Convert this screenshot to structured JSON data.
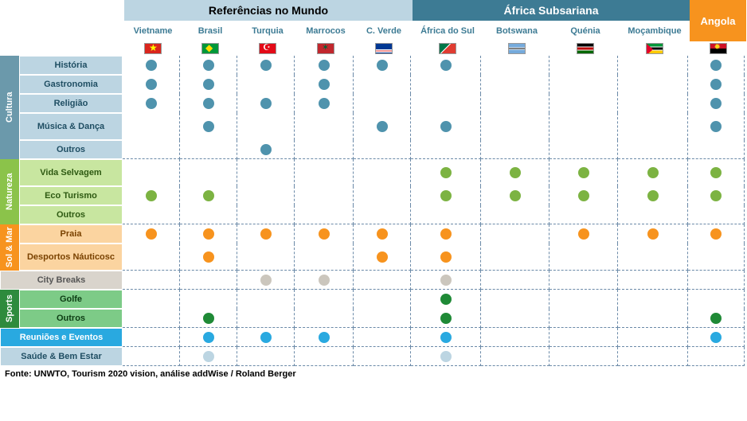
{
  "header": {
    "group1": "Referências no Mundo",
    "group2": "África Subsariana",
    "angola": "Angola"
  },
  "countries": [
    {
      "key": "vn",
      "label": "Vietname",
      "flag": "f-vn",
      "col": "c1"
    },
    {
      "key": "br",
      "label": "Brasil",
      "flag": "f-br",
      "col": "c2"
    },
    {
      "key": "tr",
      "label": "Turquia",
      "flag": "f-tr",
      "col": "c3"
    },
    {
      "key": "ma",
      "label": "Marrocos",
      "flag": "f-ma",
      "col": "c4"
    },
    {
      "key": "cv",
      "label": "C. Verde",
      "flag": "f-cv",
      "col": "c5"
    },
    {
      "key": "za",
      "label": "África do Sul",
      "flag": "f-za",
      "col": "c6"
    },
    {
      "key": "bw",
      "label": "Botswana",
      "flag": "f-bw",
      "col": "c7"
    },
    {
      "key": "ke",
      "label": "Quénia",
      "flag": "f-ke",
      "col": "c8"
    },
    {
      "key": "mz",
      "label": "Moçambique",
      "flag": "f-mz",
      "col": "c9"
    },
    {
      "key": "ao",
      "label": "",
      "flag": "f-ao",
      "col": "c10"
    }
  ],
  "categories": [
    {
      "key": "cultura",
      "label": "Cultura",
      "bg": "#6b99ab",
      "text": "#fff",
      "row_bg": "#bcd5e2",
      "row_text": "#1f4e63",
      "dot": "#4f93ad",
      "rows": [
        {
          "label": "História",
          "cells": [
            1,
            1,
            1,
            1,
            1,
            1,
            0,
            0,
            0,
            1
          ]
        },
        {
          "label": "Gastronomia",
          "cells": [
            1,
            1,
            0,
            1,
            0,
            0,
            0,
            0,
            0,
            1
          ]
        },
        {
          "label": "Religião",
          "cells": [
            1,
            1,
            1,
            1,
            0,
            0,
            0,
            0,
            0,
            1
          ]
        },
        {
          "label": "Música & Dança",
          "tall": true,
          "cells": [
            0,
            1,
            0,
            0,
            1,
            1,
            0,
            0,
            0,
            1
          ]
        },
        {
          "label": "Outros",
          "cells": [
            0,
            0,
            1,
            0,
            0,
            0,
            0,
            0,
            0,
            0
          ]
        }
      ]
    },
    {
      "key": "natureza",
      "label": "Natureza",
      "bg": "#8bc34a",
      "text": "#fff",
      "row_bg": "#c8e6a0",
      "row_text": "#2e5a12",
      "dot": "#7cb342",
      "rows": [
        {
          "label": "Vida Selvagem",
          "tall": true,
          "cells": [
            0,
            0,
            0,
            0,
            0,
            1,
            1,
            1,
            1,
            1
          ]
        },
        {
          "label": "Eco Turismo",
          "cells": [
            1,
            1,
            0,
            0,
            0,
            1,
            1,
            1,
            1,
            1
          ]
        },
        {
          "label": "Outros",
          "cells": [
            0,
            0,
            0,
            0,
            0,
            0,
            0,
            0,
            0,
            0
          ]
        }
      ]
    },
    {
      "key": "solmar",
      "label": "Sol & Mar",
      "bg": "#f7931e",
      "text": "#fff",
      "row_bg": "#fbd4a0",
      "row_text": "#7a4200",
      "dot": "#f7931e",
      "rows": [
        {
          "label": "Praia",
          "cells": [
            1,
            1,
            1,
            1,
            1,
            1,
            0,
            1,
            1,
            1
          ]
        },
        {
          "label": "Desportos Náuticosc",
          "tall": true,
          "cells": [
            0,
            1,
            0,
            0,
            1,
            1,
            0,
            0,
            0,
            0
          ]
        }
      ]
    },
    {
      "key": "city",
      "label": "",
      "bg": "#d9d4cc",
      "text": "#555",
      "single": true,
      "row_bg": "#d9d4cc",
      "row_text": "#555",
      "dot": "#cbc6bd",
      "rows": [
        {
          "label": "City Breaks",
          "wide": true,
          "cells": [
            0,
            0,
            1,
            1,
            0,
            1,
            0,
            0,
            0,
            0
          ]
        }
      ]
    },
    {
      "key": "sports",
      "label": "Sports",
      "bg": "#2e8b3d",
      "text": "#fff",
      "row_bg": "#7dcb87",
      "row_text": "#0d3d14",
      "dot": "#1f8a36",
      "rows": [
        {
          "label": "Golfe",
          "cells": [
            0,
            0,
            0,
            0,
            0,
            1,
            0,
            0,
            0,
            0
          ]
        },
        {
          "label": "Outros",
          "cells": [
            0,
            1,
            0,
            0,
            0,
            1,
            0,
            0,
            0,
            1
          ]
        }
      ]
    },
    {
      "key": "reun",
      "label": "",
      "bg": "#29a9e0",
      "text": "#fff",
      "single": true,
      "row_bg": "#29a9e0",
      "row_text": "#fff",
      "dot": "#29a9e0",
      "rows": [
        {
          "label": "Reuniões e Eventos",
          "wide": true,
          "cells": [
            0,
            1,
            1,
            1,
            0,
            1,
            0,
            0,
            0,
            1
          ]
        }
      ]
    },
    {
      "key": "saude",
      "label": "",
      "bg": "#bcd5e2",
      "text": "#1f4e63",
      "single": true,
      "row_bg": "#bcd5e2",
      "row_text": "#1f4e63",
      "dot": "#bcd5e2",
      "rows": [
        {
          "label": "Saúde & Bem Estar",
          "wide": true,
          "cells": [
            0,
            1,
            0,
            0,
            0,
            1,
            0,
            0,
            0,
            0
          ]
        }
      ]
    }
  ],
  "source": "Fonte: UNWTO, Tourism 2020 vision, análise addWise / Roland Berger",
  "palette": {
    "grid_dash": "#6b8aa8",
    "header_light": "#bcd5e2",
    "header_dark": "#3d7b94",
    "angola_bg": "#f7931e"
  }
}
